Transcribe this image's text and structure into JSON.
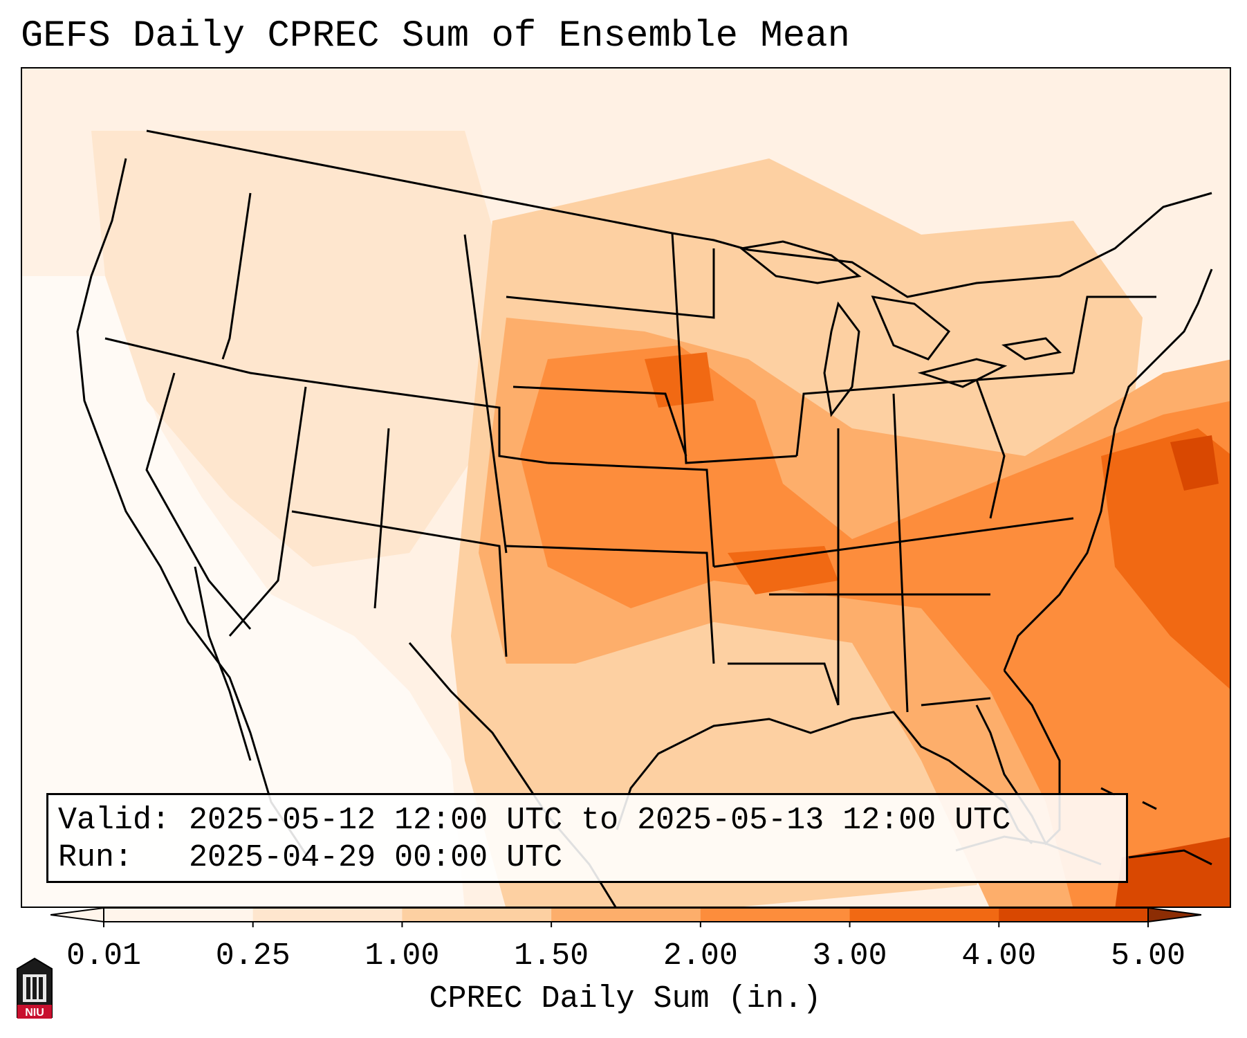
{
  "title": "GEFS Daily CPREC Sum of Ensemble Mean",
  "info": {
    "valid_label": "Valid:",
    "valid_value": "2025-05-12 12:00 UTC to 2025-05-13 12:00 UTC",
    "run_label": "Run:",
    "run_value": "2025-04-29 00:00 UTC"
  },
  "colorbar": {
    "label": "CPREC Daily Sum (in.)",
    "ticks": [
      "0.01",
      "0.25",
      "1.00",
      "1.50",
      "2.00",
      "3.00",
      "4.00",
      "5.00"
    ],
    "colors": [
      "#fff5eb",
      "#fee6ce",
      "#fdd0a2",
      "#fdae6b",
      "#fd8d3c",
      "#f16913",
      "#d94801",
      "#8c2d04"
    ]
  },
  "logo": {
    "text": "NIU"
  }
}
